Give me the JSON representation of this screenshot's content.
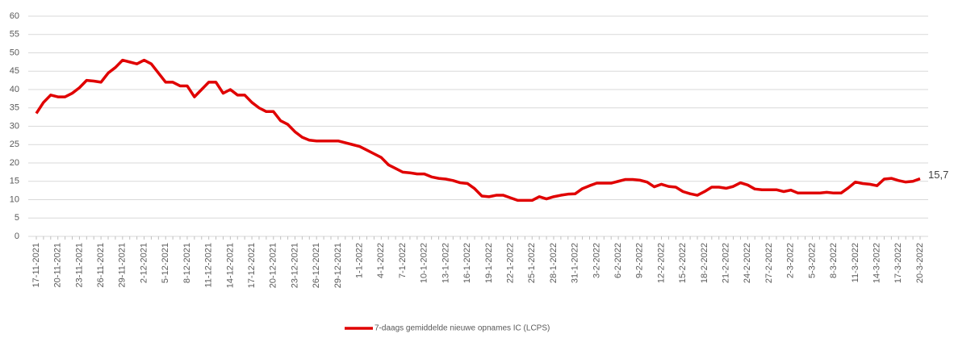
{
  "chart_data": {
    "type": "line",
    "categories": [
      "17-11-2021",
      null,
      null,
      "20-11-2021",
      null,
      null,
      "23-11-2021",
      null,
      null,
      "26-11-2021",
      null,
      null,
      "29-11-2021",
      null,
      null,
      "2-12-2021",
      null,
      null,
      "5-12-2021",
      null,
      null,
      "8-12-2021",
      null,
      null,
      "11-12-2021",
      null,
      null,
      "14-12-2021",
      null,
      null,
      "17-12-2021",
      null,
      null,
      "20-12-2021",
      null,
      null,
      "23-12-2021",
      null,
      null,
      "26-12-2021",
      null,
      null,
      "29-12-2021",
      null,
      null,
      "1-1-2022",
      null,
      null,
      "4-1-2022",
      null,
      null,
      "7-1-2022",
      null,
      null,
      "10-1-2022",
      null,
      null,
      "13-1-2022",
      null,
      null,
      "16-1-2022",
      null,
      null,
      "19-1-2022",
      null,
      null,
      "22-1-2022",
      null,
      null,
      "25-1-2022",
      null,
      null,
      "28-1-2022",
      null,
      null,
      "31-1-2022",
      null,
      null,
      "3-2-2022",
      null,
      null,
      "6-2-2022",
      null,
      null,
      "9-2-2022",
      null,
      null,
      "12-2-2022",
      null,
      null,
      "15-2-2022",
      null,
      null,
      "18-2-2022",
      null,
      null,
      "21-2-2022",
      null,
      null,
      "24-2-2022",
      null,
      null,
      "27-2-2022",
      null,
      null,
      "2-3-2022",
      null,
      null,
      "5-3-2022",
      null,
      null,
      "8-3-2022",
      null,
      null,
      "11-3-2022",
      null,
      null,
      "14-3-2022",
      null,
      null,
      "17-3-2022",
      null,
      null,
      "20-3-2022"
    ],
    "series": [
      {
        "name": "7-daags gemiddelde nieuwe opnames IC (LCPS)",
        "color": "#e00000",
        "values": [
          33.5,
          36.5,
          38.5,
          38,
          38,
          39,
          40.5,
          42.5,
          42.3,
          42,
          44.5,
          46,
          48,
          47.5,
          47,
          48,
          47,
          44.5,
          42,
          42,
          41,
          41,
          38,
          40,
          42,
          42,
          39,
          40,
          38.5,
          38.5,
          36.5,
          35,
          34,
          34,
          31.5,
          30.5,
          28.5,
          27,
          26.2,
          26,
          26,
          26,
          26,
          25.5,
          25,
          24.5,
          23.5,
          22.5,
          21.5,
          19.5,
          18.5,
          17.5,
          17.3,
          17,
          17,
          16.2,
          15.8,
          15.6,
          15.2,
          14.6,
          14.4,
          13,
          11,
          10.8,
          11.2,
          11.2,
          10.5,
          9.8,
          9.8,
          9.8,
          10.8,
          10.2,
          10.8,
          11.2,
          11.5,
          11.6,
          13,
          13.8,
          14.5,
          14.5,
          14.5,
          15,
          15.5,
          15.5,
          15.3,
          14.8,
          13.5,
          14.2,
          13.6,
          13.4,
          12.2,
          11.6,
          11.2,
          12.2,
          13.4,
          13.4,
          13.1,
          13.6,
          14.6,
          14,
          12.9,
          12.7,
          12.7,
          12.7,
          12.2,
          12.6,
          11.8,
          11.8,
          11.8,
          11.8,
          12,
          11.8,
          11.8,
          13.2,
          14.8,
          14.4,
          14.2,
          13.8,
          15.6,
          15.8,
          15.2,
          14.8,
          15,
          15.7
        ],
        "value_labels": [
          null,
          null,
          null,
          null,
          null,
          null,
          null,
          null,
          null,
          null,
          null,
          null,
          null,
          null,
          null,
          null,
          null,
          null,
          null,
          null,
          null,
          null,
          null,
          null,
          null,
          null,
          null,
          null,
          null,
          null,
          null,
          null,
          null,
          null,
          null,
          null,
          null,
          null,
          null,
          null,
          null,
          null,
          null,
          null,
          null,
          null,
          null,
          null,
          null,
          null,
          null,
          null,
          null,
          null,
          null,
          null,
          null,
          null,
          null,
          null,
          null,
          null,
          null,
          null,
          null,
          null,
          null,
          null,
          null,
          null,
          null,
          null,
          null,
          null,
          null,
          null,
          null,
          null,
          null,
          null,
          null,
          null,
          null,
          null,
          null,
          null,
          null,
          null,
          null,
          null,
          null,
          null,
          null,
          null,
          null,
          null,
          null,
          null,
          null,
          null,
          null,
          null,
          null,
          null,
          null,
          null,
          null,
          null,
          null,
          null,
          null,
          null,
          null,
          null,
          null,
          null,
          null,
          null,
          null,
          null,
          null,
          null,
          null,
          "15,7"
        ]
      }
    ],
    "ylim": [
      0,
      60
    ],
    "yticks": [
      0,
      5,
      10,
      15,
      20,
      25,
      30,
      35,
      40,
      45,
      50,
      55,
      60
    ],
    "grid": true,
    "legend": "bottom"
  }
}
